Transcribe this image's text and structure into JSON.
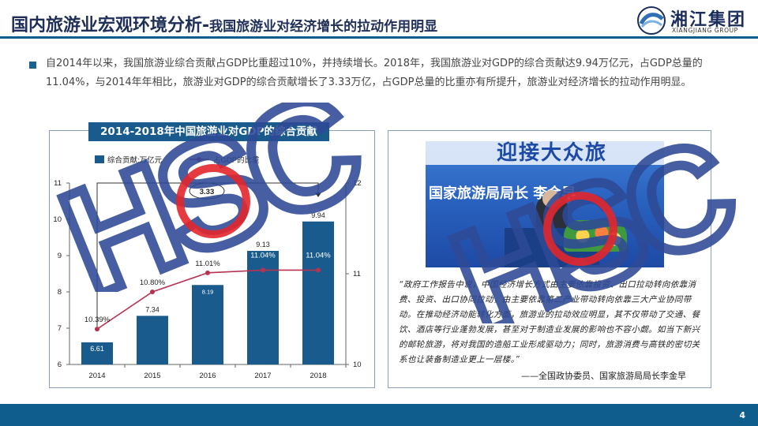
{
  "header": {
    "title": "国内旅游业宏观环境分析-",
    "subtitle": "我国旅游业对经济增长的拉动作用明显",
    "logo_name": "湘江集团",
    "logo_en": "XIANGJIANG GROUP"
  },
  "body_text": "自2014年以来，我国旅游业综合贡献占GDP比重超过10%，并持续增长。2018年，我国旅游业对GDP的综合贡献达9.94万亿元，占GDP总量的11.04%，与2014年年相比，旅游业对GDP的综合贡献增长了3.33万亿，占GDP总量的比重亦有所提升，旅游业对经济增长的拉动作用明显。",
  "watermark": "HSC",
  "chart_data": {
    "type": "bar",
    "title": "2014-2018年中国旅游业对GDP的综合贡献",
    "categories": [
      "2014",
      "2015",
      "2016",
      "2017",
      "2018"
    ],
    "series": [
      {
        "name": "综合贡献:万亿元",
        "type": "bar",
        "axis": "left",
        "values": [
          6.61,
          7.34,
          8.19,
          9.13,
          9.94
        ],
        "labels": [
          "6.61",
          "7.34",
          "8.19",
          "9.13",
          "9.94"
        ]
      },
      {
        "name": "占GDP的比重",
        "type": "line",
        "axis": "right",
        "values": [
          10.39,
          10.8,
          11.01,
          11.04,
          11.04
        ],
        "labels": [
          "10.39%",
          "10.80%",
          "11.01%",
          "11.04%",
          "11.04%"
        ]
      }
    ],
    "left_axis": {
      "min": 6,
      "max": 11,
      "ticks": [
        "6",
        "7",
        "8",
        "9",
        "10",
        "11"
      ]
    },
    "right_axis": {
      "min": 10,
      "max": 12,
      "ticks": [
        "10",
        "11",
        "12"
      ]
    },
    "annotation": "3.33",
    "colors": {
      "bar": "#1a5b8d",
      "line": "#b83252",
      "title_bg": "#1a5b8d"
    }
  },
  "photo": {
    "banner_text": "迎接大众旅",
    "screen_text": "国家旅游局局长 李金早"
  },
  "quote": "“政府工作报告中说，中国经济增长方式由主要依靠投资、出口拉动转向依靠消费、投资、出口协同拉动，由主要依靠第二产业带动转向依靠三大产业协同带动。在推动经济动能转化方面，旅游业的拉动效应明显，其不仅带动了交通、餐饮、酒店等行业蓬勃发展，甚至对于制造业发展的影响也不容小觑。如当下新兴的邮轮旅游，将对我国的造船工业形成驱动力；同时，旅游消费与高铁的密切关系也让装备制造业更上一层楼。”",
  "attribution": "——全国政协委员、国家旅游局局长李金早",
  "page_number": "4"
}
